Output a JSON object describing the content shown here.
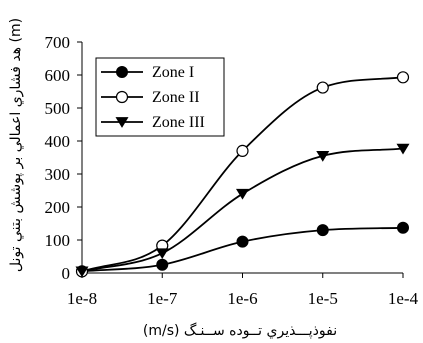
{
  "chart_data": {
    "type": "line",
    "title": "",
    "xlabel": "(m/s) نفوذپـــذيري تــوده ســنـگ",
    "ylabel": "هد فشاري اعمالي بر پوشش بتني تونل (m)",
    "x_categories": [
      "1e-8",
      "1e-7",
      "1e-6",
      "1e-5",
      "1e-4"
    ],
    "x_scale": "log",
    "ylim": [
      0,
      700
    ],
    "yticks": [
      "0",
      "100",
      "200",
      "300",
      "400",
      "500",
      "600",
      "700"
    ],
    "legend_position": "top-left",
    "grid": false,
    "series": [
      {
        "name": "Zone I",
        "marker": "filled-circle",
        "values": [
          5,
          25,
          95,
          130,
          137
        ]
      },
      {
        "name": "Zone II",
        "marker": "open-circle",
        "values": [
          5,
          83,
          370,
          562,
          593
        ]
      },
      {
        "name": "Zone III",
        "marker": "filled-triangle-down",
        "values": [
          5,
          60,
          240,
          355,
          377
        ]
      }
    ]
  }
}
